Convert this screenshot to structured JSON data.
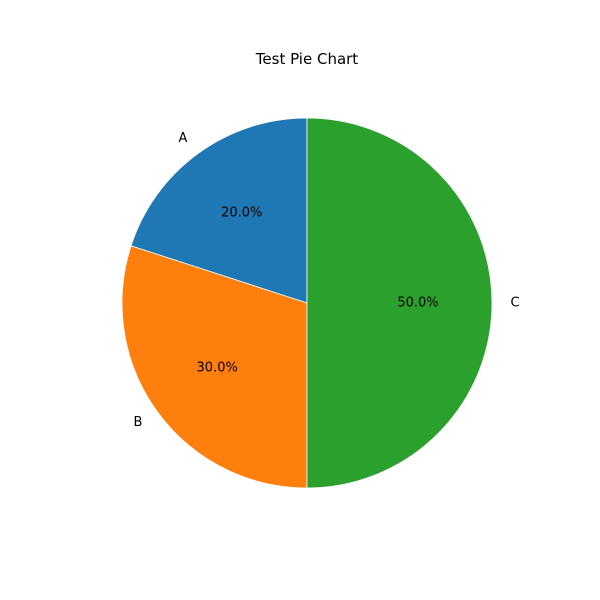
{
  "chart_data": {
    "type": "pie",
    "title": "Test Pie Chart",
    "slices": [
      {
        "label": "A",
        "value": 20,
        "pct_label": "20.0%",
        "color": "#1f77b4"
      },
      {
        "label": "B",
        "value": 30,
        "pct_label": "30.0%",
        "color": "#ff7f0e"
      },
      {
        "label": "C",
        "value": 50,
        "pct_label": "50.0%",
        "color": "#2ca02c"
      }
    ],
    "start_angle_deg": 90,
    "direction": "counterclockwise"
  }
}
